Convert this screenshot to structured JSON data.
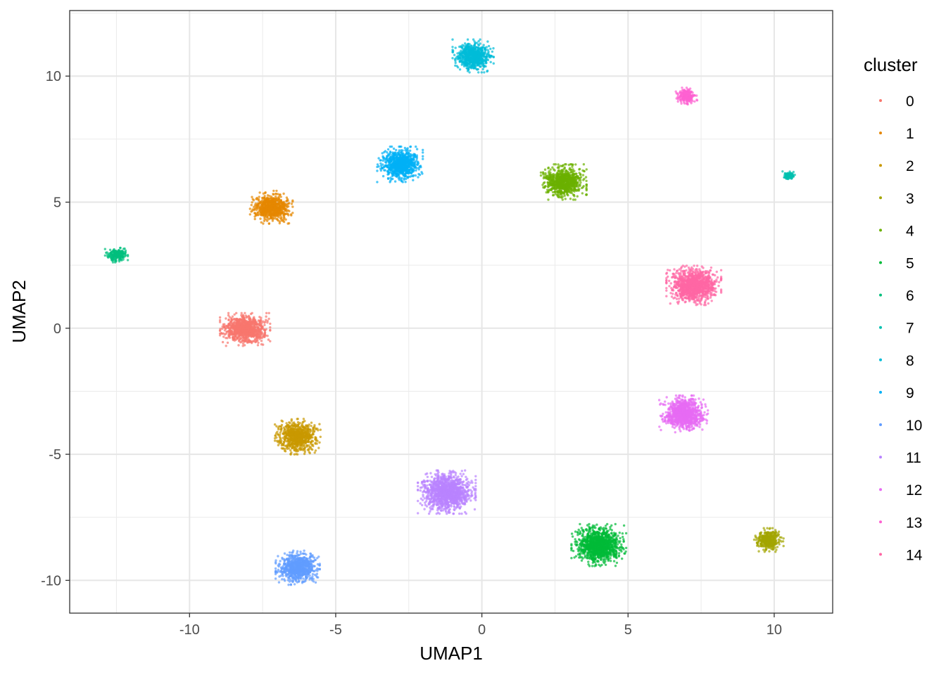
{
  "chart_data": {
    "type": "scatter",
    "title": "",
    "xlabel": "UMAP1",
    "ylabel": "UMAP2",
    "xlim": [
      -14.1,
      12.0
    ],
    "ylim": [
      -11.3,
      12.6
    ],
    "x_ticks": [
      -10,
      -5,
      0,
      5,
      10
    ],
    "y_ticks": [
      -10,
      -5,
      0,
      5,
      10
    ],
    "x_tick_labels": [
      "-10",
      "-5",
      "0",
      "5",
      "10"
    ],
    "y_tick_labels": [
      "-10",
      "-5",
      "0",
      "5",
      "10"
    ],
    "grid": true,
    "legend": {
      "title": "cluster",
      "position": "right"
    },
    "series": [
      {
        "name": "0",
        "color": "#F8766D",
        "center": [
          -8.1,
          -0.05
        ],
        "spread": [
          0.33,
          0.25
        ],
        "points": 900
      },
      {
        "name": "1",
        "color": "#E58700",
        "center": [
          -7.2,
          4.8
        ],
        "spread": [
          0.28,
          0.25
        ],
        "points": 700
      },
      {
        "name": "2",
        "color": "#C99800",
        "center": [
          -6.3,
          -4.3
        ],
        "spread": [
          0.3,
          0.27
        ],
        "points": 750
      },
      {
        "name": "3",
        "color": "#A3A500",
        "center": [
          9.8,
          -8.4
        ],
        "spread": [
          0.2,
          0.18
        ],
        "points": 350
      },
      {
        "name": "4",
        "color": "#6BB100",
        "center": [
          2.8,
          5.8
        ],
        "spread": [
          0.3,
          0.27
        ],
        "points": 800
      },
      {
        "name": "5",
        "color": "#00BA38",
        "center": [
          4.0,
          -8.6
        ],
        "spread": [
          0.36,
          0.32
        ],
        "points": 1100
      },
      {
        "name": "6",
        "color": "#00BF7D",
        "center": [
          -12.5,
          2.9
        ],
        "spread": [
          0.15,
          0.11
        ],
        "points": 200
      },
      {
        "name": "7",
        "color": "#00C0AF",
        "center": [
          10.5,
          6.05
        ],
        "spread": [
          0.09,
          0.07
        ],
        "points": 90
      },
      {
        "name": "8",
        "color": "#00BCD8",
        "center": [
          -0.3,
          10.8
        ],
        "spread": [
          0.27,
          0.25
        ],
        "points": 700
      },
      {
        "name": "9",
        "color": "#00B0F6",
        "center": [
          -2.8,
          6.5
        ],
        "spread": [
          0.3,
          0.27
        ],
        "points": 800
      },
      {
        "name": "10",
        "color": "#619CFF",
        "center": [
          -6.3,
          -9.5
        ],
        "spread": [
          0.29,
          0.26
        ],
        "points": 750
      },
      {
        "name": "11",
        "color": "#B983FF",
        "center": [
          -1.2,
          -6.5
        ],
        "spread": [
          0.38,
          0.33
        ],
        "points": 1200
      },
      {
        "name": "12",
        "color": "#E76BF3",
        "center": [
          6.9,
          -3.4
        ],
        "spread": [
          0.32,
          0.28
        ],
        "points": 900
      },
      {
        "name": "13",
        "color": "#FD61D1",
        "center": [
          7.0,
          9.2
        ],
        "spread": [
          0.14,
          0.13
        ],
        "points": 220
      },
      {
        "name": "14",
        "color": "#FF67A4",
        "center": [
          7.25,
          1.7
        ],
        "spread": [
          0.36,
          0.3
        ],
        "points": 1100
      }
    ]
  }
}
